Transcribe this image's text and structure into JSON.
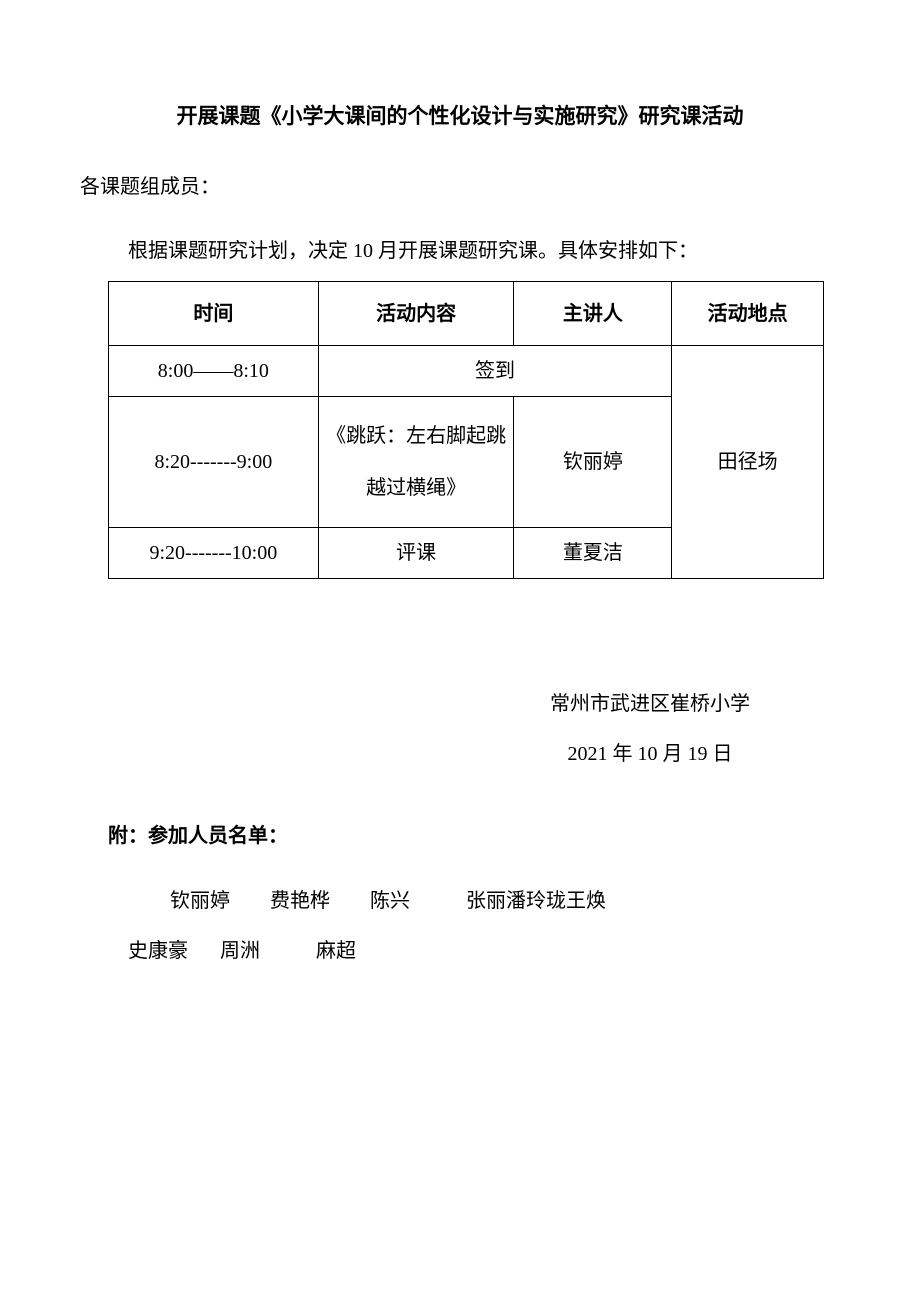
{
  "title": "开展课题《小学大课间的个性化设计与实施研究》研究课活动",
  "greeting": "各课题组成员：",
  "intro": "根据课题研究计划，决定 10 月开展课题研究课。具体安排如下：",
  "table": {
    "headers": {
      "time": "时间",
      "content": "活动内容",
      "speaker": "主讲人",
      "location": "活动地点"
    },
    "rows": {
      "r1_time": "8:00——8:10",
      "r1_content": "签到",
      "r2_time": "8:20-------9:00",
      "r2_content": "《跳跃：左右脚起跳越过横绳》",
      "r2_speaker": "钦丽婷",
      "r3_time": "9:20-------10:00",
      "r3_content": "评课",
      "r3_speaker": "董夏洁",
      "location_merged": "田径场"
    }
  },
  "signature": {
    "org": "常州市武进区崔桥小学",
    "date": "2021 年 10 月 19 日"
  },
  "attachment": {
    "title": "附：参加人员名单：",
    "line1_p1": "钦丽婷",
    "line1_p2": "费艳桦",
    "line1_p3": "陈兴",
    "line1_p4": "张丽潘玲珑王焕",
    "line2_p1": "史康豪",
    "line2_p2": "周洲",
    "line2_p3": "麻超"
  }
}
